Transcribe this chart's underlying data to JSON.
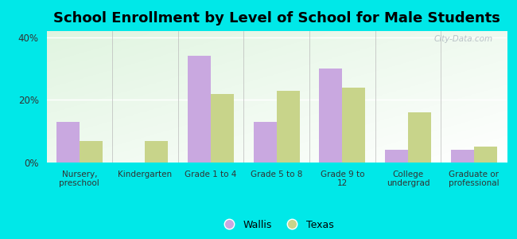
{
  "title": "School Enrollment by Level of School for Male Students",
  "categories": [
    "Nursery,\npreschool",
    "Kindergarten",
    "Grade 1 to 4",
    "Grade 5 to 8",
    "Grade 9 to\n12",
    "College\nundergrad",
    "Graduate or\nprofessional"
  ],
  "wallis": [
    13.0,
    0.0,
    34.0,
    13.0,
    30.0,
    4.0,
    4.0
  ],
  "texas": [
    7.0,
    7.0,
    22.0,
    23.0,
    24.0,
    16.0,
    5.0
  ],
  "wallis_color": "#c9a8e0",
  "texas_color": "#c8d48a",
  "background_color": "#00e8e8",
  "ylim": [
    0,
    42
  ],
  "yticks": [
    0,
    20,
    40
  ],
  "ytick_labels": [
    "0%",
    "20%",
    "40%"
  ],
  "legend_wallis": "Wallis",
  "legend_texas": "Texas",
  "title_fontsize": 13,
  "bar_width": 0.35
}
